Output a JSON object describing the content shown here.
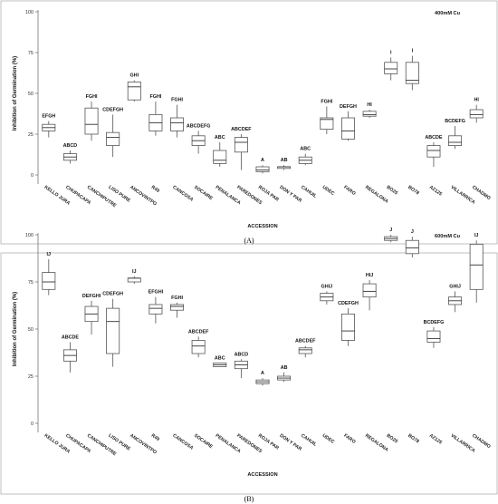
{
  "chart_data": [
    {
      "type": "boxplot",
      "panel_label": "(A)",
      "annotation": "400mM Cu",
      "xlabel": "ACCESSION",
      "ylabel": "Inhibition of Germination (%)",
      "ylim": [
        0,
        100
      ],
      "yticks": [
        0,
        25,
        50,
        75,
        100
      ],
      "grid": false,
      "categories": [
        "KELLO JURA",
        "CHUPACAPA",
        "CANCHIPUTRE",
        "LISO PURE",
        "ANCOVINTPO",
        "R49",
        "CANCOSA",
        "SOCAIRE",
        "PENALANCA",
        "PAREDONES",
        "ROJA PAR",
        "DON Y PAR",
        "CAHUIL",
        "UDEC",
        "FARO",
        "REGALONA",
        "BO25",
        "BO78",
        "AZ125",
        "VILLARRICA",
        "CHADMO"
      ],
      "groups": [
        "EFGH",
        "ABCD",
        "FGHI",
        "CDEFGH",
        "GHI",
        "FGHI",
        "FGHI",
        "ABCDEFG",
        "ABC",
        "ABCDEF",
        "A",
        "AB",
        "ABC",
        "FGHI",
        "DEFGH",
        "HI",
        "I",
        "I",
        "ABCDE",
        "BCDEFG",
        "HI"
      ],
      "boxes": [
        {
          "min": 23,
          "q1": 27,
          "median": 29,
          "q3": 31,
          "max": 33
        },
        {
          "min": 7,
          "q1": 9,
          "median": 11,
          "q3": 13,
          "max": 15
        },
        {
          "min": 21,
          "q1": 25,
          "median": 31,
          "q3": 41,
          "max": 45
        },
        {
          "min": 11,
          "q1": 18,
          "median": 23,
          "q3": 26,
          "max": 37
        },
        {
          "min": 45,
          "q1": 46,
          "median": 54,
          "q3": 57,
          "max": 58
        },
        {
          "min": 24,
          "q1": 27,
          "median": 32,
          "q3": 37,
          "max": 45
        },
        {
          "min": 23,
          "q1": 27,
          "median": 32,
          "q3": 35,
          "max": 43
        },
        {
          "min": 13,
          "q1": 18,
          "median": 21,
          "q3": 24,
          "max": 27
        },
        {
          "min": 5,
          "q1": 7,
          "median": 9,
          "q3": 15,
          "max": 20
        },
        {
          "min": 3,
          "q1": 14,
          "median": 20,
          "q3": 23,
          "max": 25
        },
        {
          "min": 1,
          "q1": 2,
          "median": 3,
          "q3": 5,
          "max": 6
        },
        {
          "min": 3,
          "q1": 4,
          "median": 5,
          "q3": 5,
          "max": 6
        },
        {
          "min": 6,
          "q1": 7,
          "median": 9,
          "q3": 11,
          "max": 13
        },
        {
          "min": 25,
          "q1": 28,
          "median": 34,
          "q3": 35,
          "max": 42
        },
        {
          "min": 21,
          "q1": 22,
          "median": 27,
          "q3": 35,
          "max": 39
        },
        {
          "min": 35,
          "q1": 36,
          "median": 37,
          "q3": 39,
          "max": 40
        },
        {
          "min": 58,
          "q1": 62,
          "median": 65,
          "q3": 69,
          "max": 72
        },
        {
          "min": 52,
          "q1": 56,
          "median": 58,
          "q3": 69,
          "max": 73
        },
        {
          "min": 5,
          "q1": 11,
          "median": 15,
          "q3": 18,
          "max": 20
        },
        {
          "min": 16,
          "q1": 18,
          "median": 20,
          "q3": 24,
          "max": 30
        },
        {
          "min": 32,
          "q1": 35,
          "median": 37,
          "q3": 40,
          "max": 43
        }
      ]
    },
    {
      "type": "boxplot",
      "panel_label": "(B)",
      "annotation": "600mM Cu",
      "xlabel": "ACCESSION",
      "ylabel": "Inhibition of Germination (%)",
      "ylim": [
        0,
        100
      ],
      "yticks": [
        0,
        25,
        50,
        75,
        100
      ],
      "grid": false,
      "categories": [
        "KELLO JURA",
        "CHUPACAPA",
        "CANCHIPUTRE",
        "LISO PURE",
        "ANCOVINTPO",
        "R49",
        "CANCOSA",
        "SOCAIRE",
        "PENALANCA",
        "PAREDONES",
        "ROJA PAR",
        "DON Y PAR",
        "CAHUIL",
        "UDEC",
        "FARO",
        "REGALONA",
        "BO25",
        "BO78",
        "AZ125",
        "VILLARRICA",
        "CHADMO"
      ],
      "groups": [
        "IJ",
        "ABCDE",
        "DEFGHI",
        "CDEFGH",
        "IJ",
        "EFGHI",
        "FGHI",
        "ABCDEF",
        "ABC",
        "ABCD",
        "A",
        "AB",
        "ABCDEF",
        "GHIJ",
        "CDEFGH",
        "HIJ",
        "J",
        "J",
        "BCDEFG",
        "GHIJ",
        "IJ"
      ],
      "boxes": [
        {
          "min": 68,
          "q1": 71,
          "median": 75,
          "q3": 80,
          "max": 87
        },
        {
          "min": 27,
          "q1": 33,
          "median": 36,
          "q3": 39,
          "max": 43
        },
        {
          "min": 47,
          "q1": 54,
          "median": 58,
          "q3": 62,
          "max": 65
        },
        {
          "min": 30,
          "q1": 37,
          "median": 54,
          "q3": 61,
          "max": 66
        },
        {
          "min": 74,
          "q1": 75,
          "median": 77,
          "q3": 77,
          "max": 78
        },
        {
          "min": 53,
          "q1": 58,
          "median": 61,
          "q3": 63,
          "max": 67
        },
        {
          "min": 56,
          "q1": 60,
          "median": 62,
          "q3": 63,
          "max": 64
        },
        {
          "min": 35,
          "q1": 37,
          "median": 41,
          "q3": 44,
          "max": 46
        },
        {
          "min": 30,
          "q1": 30,
          "median": 31,
          "q3": 32,
          "max": 32
        },
        {
          "min": 24,
          "q1": 29,
          "median": 31,
          "q3": 33,
          "max": 34
        },
        {
          "min": 20,
          "q1": 21,
          "median": 22,
          "q3": 23,
          "max": 24
        },
        {
          "min": 22,
          "q1": 23,
          "median": 24,
          "q3": 25,
          "max": 27
        },
        {
          "min": 35,
          "q1": 37,
          "median": 39,
          "q3": 40,
          "max": 41
        },
        {
          "min": 63,
          "q1": 65,
          "median": 67,
          "q3": 69,
          "max": 70
        },
        {
          "min": 41,
          "q1": 44,
          "median": 49,
          "q3": 58,
          "max": 61
        },
        {
          "min": 60,
          "q1": 67,
          "median": 70,
          "q3": 74,
          "max": 76
        },
        {
          "min": 96,
          "q1": 97,
          "median": 98,
          "q3": 99,
          "max": 100
        },
        {
          "min": 88,
          "q1": 90,
          "median": 93,
          "q3": 97,
          "max": 99
        },
        {
          "min": 40,
          "q1": 43,
          "median": 45,
          "q3": 49,
          "max": 51
        },
        {
          "min": 59,
          "q1": 63,
          "median": 65,
          "q3": 67,
          "max": 70
        },
        {
          "min": 64,
          "q1": 71,
          "median": 84,
          "q3": 95,
          "max": 97
        }
      ]
    }
  ]
}
